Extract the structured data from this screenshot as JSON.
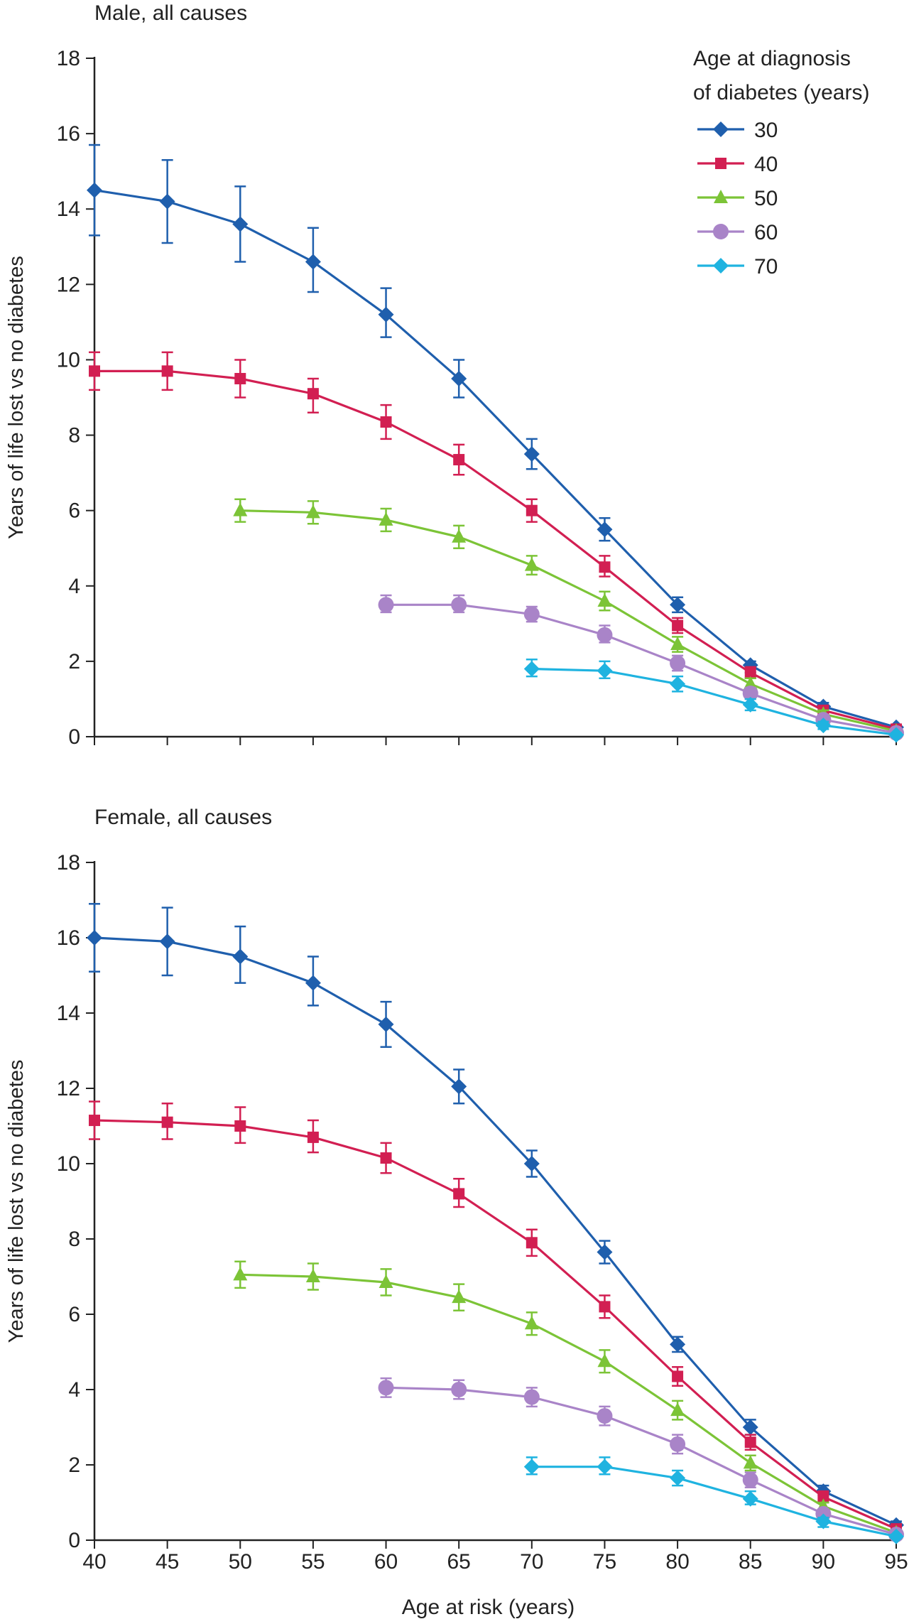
{
  "chart_data": [
    {
      "type": "line",
      "title": "Male, all causes",
      "xlabel": "",
      "ylabel": "Years of life lost vs no diabetes",
      "xlim": [
        40,
        95
      ],
      "ylim": [
        0,
        18
      ],
      "xticks": [
        "40",
        "45",
        "50",
        "55",
        "60",
        "65",
        "70",
        "75",
        "80",
        "85",
        "90",
        "95"
      ],
      "xtick_labels_shown": false,
      "yticks": [
        "0",
        "2",
        "4",
        "6",
        "8",
        "10",
        "12",
        "14",
        "16",
        "18"
      ],
      "grid": false,
      "legend": {
        "title_lines": [
          "Age at diagnosis",
          "of diabetes (years)"
        ],
        "placement": "top-right"
      },
      "series": [
        {
          "name": "30",
          "color": "#1f5fad",
          "marker": "diamond",
          "x": [
            40,
            45,
            50,
            55,
            60,
            65,
            70,
            75,
            80,
            85,
            90,
            95
          ],
          "y": [
            14.5,
            14.2,
            13.6,
            12.6,
            11.2,
            9.5,
            7.5,
            5.5,
            3.5,
            1.9,
            0.8,
            0.25
          ],
          "err_low": [
            13.3,
            13.1,
            12.6,
            11.8,
            10.6,
            9.0,
            7.1,
            5.2,
            3.3,
            1.7,
            0.7,
            0.2
          ],
          "err_high": [
            15.7,
            15.3,
            14.6,
            13.5,
            11.9,
            10.0,
            7.9,
            5.8,
            3.7,
            2.0,
            0.9,
            0.3
          ]
        },
        {
          "name": "40",
          "color": "#d21f52",
          "marker": "square",
          "x": [
            40,
            45,
            50,
            55,
            60,
            65,
            70,
            75,
            80,
            85,
            90,
            95
          ],
          "y": [
            9.7,
            9.7,
            9.5,
            9.1,
            8.35,
            7.35,
            6.0,
            4.5,
            2.95,
            1.7,
            0.7,
            0.2
          ],
          "err_low": [
            9.2,
            9.2,
            9.0,
            8.6,
            7.9,
            6.95,
            5.7,
            4.25,
            2.75,
            1.55,
            0.6,
            0.15
          ],
          "err_high": [
            10.2,
            10.2,
            10.0,
            9.5,
            8.8,
            7.75,
            6.3,
            4.8,
            3.15,
            1.85,
            0.8,
            0.25
          ]
        },
        {
          "name": "50",
          "color": "#7cc437",
          "marker": "triangle",
          "x": [
            50,
            55,
            60,
            65,
            70,
            75,
            80,
            85,
            90,
            95
          ],
          "y": [
            6.0,
            5.95,
            5.75,
            5.3,
            4.55,
            3.6,
            2.45,
            1.4,
            0.6,
            0.15
          ],
          "err_low": [
            5.7,
            5.65,
            5.45,
            5.0,
            4.3,
            3.35,
            2.25,
            1.25,
            0.5,
            0.1
          ],
          "err_high": [
            6.3,
            6.25,
            6.05,
            5.6,
            4.8,
            3.85,
            2.65,
            1.55,
            0.7,
            0.2
          ]
        },
        {
          "name": "60",
          "color": "#a984c8",
          "marker": "circle",
          "x": [
            60,
            65,
            70,
            75,
            80,
            85,
            90,
            95
          ],
          "y": [
            3.5,
            3.5,
            3.25,
            2.7,
            1.95,
            1.15,
            0.45,
            0.1
          ],
          "err_low": [
            3.3,
            3.3,
            3.05,
            2.5,
            1.75,
            1.0,
            0.35,
            0.05
          ],
          "err_high": [
            3.75,
            3.75,
            3.45,
            2.95,
            2.15,
            1.3,
            0.55,
            0.15
          ]
        },
        {
          "name": "70",
          "color": "#1fb3e0",
          "marker": "diamond",
          "x": [
            70,
            75,
            80,
            85,
            90,
            95
          ],
          "y": [
            1.8,
            1.75,
            1.4,
            0.85,
            0.3,
            0.05
          ],
          "err_low": [
            1.6,
            1.55,
            1.2,
            0.7,
            0.2,
            0.0
          ],
          "err_high": [
            2.05,
            2.0,
            1.6,
            1.0,
            0.4,
            0.1
          ]
        }
      ]
    },
    {
      "type": "line",
      "title": "Female, all causes",
      "xlabel": "Age at risk (years)",
      "ylabel": "Years of life lost vs no diabetes",
      "xlim": [
        40,
        95
      ],
      "ylim": [
        0,
        18
      ],
      "xticks": [
        "40",
        "45",
        "50",
        "55",
        "60",
        "65",
        "70",
        "75",
        "80",
        "85",
        "90",
        "95"
      ],
      "xtick_labels_shown": true,
      "yticks": [
        "0",
        "2",
        "4",
        "6",
        "8",
        "10",
        "12",
        "14",
        "16",
        "18"
      ],
      "grid": false,
      "series": [
        {
          "name": "30",
          "color": "#1f5fad",
          "marker": "diamond",
          "x": [
            40,
            45,
            50,
            55,
            60,
            65,
            70,
            75,
            80,
            85,
            90,
            95
          ],
          "y": [
            16.0,
            15.9,
            15.5,
            14.8,
            13.7,
            12.05,
            10.0,
            7.65,
            5.2,
            3.0,
            1.3,
            0.4
          ],
          "err_low": [
            15.1,
            15.0,
            14.8,
            14.2,
            13.1,
            11.6,
            9.65,
            7.35,
            5.0,
            2.8,
            1.2,
            0.3
          ],
          "err_high": [
            16.9,
            16.8,
            16.3,
            15.5,
            14.3,
            12.5,
            10.35,
            7.95,
            5.4,
            3.2,
            1.45,
            0.5
          ]
        },
        {
          "name": "40",
          "color": "#d21f52",
          "marker": "square",
          "x": [
            40,
            45,
            50,
            55,
            60,
            65,
            70,
            75,
            80,
            85,
            90,
            95
          ],
          "y": [
            11.15,
            11.1,
            11.0,
            10.7,
            10.15,
            9.2,
            7.9,
            6.2,
            4.35,
            2.6,
            1.15,
            0.3
          ],
          "err_low": [
            10.65,
            10.65,
            10.55,
            10.3,
            9.75,
            8.85,
            7.55,
            5.9,
            4.1,
            2.4,
            1.0,
            0.2
          ],
          "err_high": [
            11.65,
            11.6,
            11.5,
            11.15,
            10.55,
            9.6,
            8.25,
            6.5,
            4.6,
            2.8,
            1.3,
            0.4
          ]
        },
        {
          "name": "50",
          "color": "#7cc437",
          "marker": "triangle",
          "x": [
            50,
            55,
            60,
            65,
            70,
            75,
            80,
            85,
            90,
            95
          ],
          "y": [
            7.05,
            7.0,
            6.85,
            6.45,
            5.75,
            4.75,
            3.45,
            2.05,
            0.9,
            0.2
          ],
          "err_low": [
            6.7,
            6.65,
            6.5,
            6.1,
            5.45,
            4.45,
            3.2,
            1.85,
            0.8,
            0.15
          ],
          "err_high": [
            7.4,
            7.35,
            7.2,
            6.8,
            6.05,
            5.05,
            3.7,
            2.25,
            1.0,
            0.25
          ]
        },
        {
          "name": "60",
          "color": "#a984c8",
          "marker": "circle",
          "x": [
            60,
            65,
            70,
            75,
            80,
            85,
            90,
            95
          ],
          "y": [
            4.05,
            4.0,
            3.8,
            3.3,
            2.55,
            1.6,
            0.7,
            0.15
          ],
          "err_low": [
            3.8,
            3.75,
            3.55,
            3.05,
            2.3,
            1.4,
            0.6,
            0.1
          ],
          "err_high": [
            4.3,
            4.25,
            4.05,
            3.55,
            2.8,
            1.8,
            0.8,
            0.2
          ]
        },
        {
          "name": "70",
          "color": "#1fb3e0",
          "marker": "diamond",
          "x": [
            70,
            75,
            80,
            85,
            90,
            95
          ],
          "y": [
            1.95,
            1.95,
            1.65,
            1.1,
            0.5,
            0.1
          ],
          "err_low": [
            1.75,
            1.75,
            1.45,
            0.95,
            0.35,
            0.05
          ],
          "err_high": [
            2.2,
            2.2,
            1.85,
            1.3,
            0.6,
            0.15
          ]
        }
      ]
    }
  ]
}
